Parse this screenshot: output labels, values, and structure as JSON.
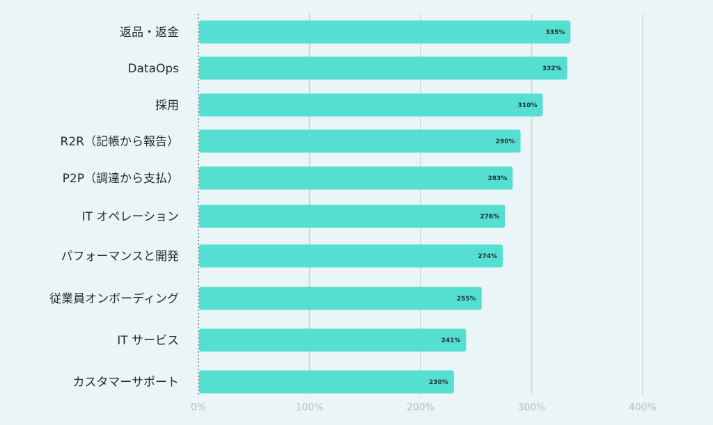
{
  "chart_data": {
    "type": "bar",
    "orientation": "horizontal",
    "categories": [
      "返品・返金",
      "DataOps",
      "採用",
      "R2R（記帳から報告）",
      "P2P（調達から支払）",
      "IT オペレーション",
      "パフォーマンスと開発",
      "従業員オンボーディング",
      "IT サービス",
      "カスタマーサポート"
    ],
    "values": [
      335,
      332,
      310,
      290,
      283,
      276,
      274,
      255,
      241,
      230
    ],
    "data_labels": [
      "335%",
      "332%",
      "310%",
      "290%",
      "283%",
      "276%",
      "274%",
      "255%",
      "241%",
      "230%"
    ],
    "xlim": [
      0,
      400
    ],
    "xticks": [
      0,
      100,
      200,
      300,
      400
    ],
    "xtick_labels": [
      "0%",
      "100%",
      "200%",
      "300%",
      "400%"
    ],
    "grid": true,
    "colors": {
      "bar": "#55dfd0",
      "background": "#e9f5f6",
      "grid": "#cfd6d9",
      "tick_text": "#b3bec4",
      "text": "#1f2933"
    }
  }
}
